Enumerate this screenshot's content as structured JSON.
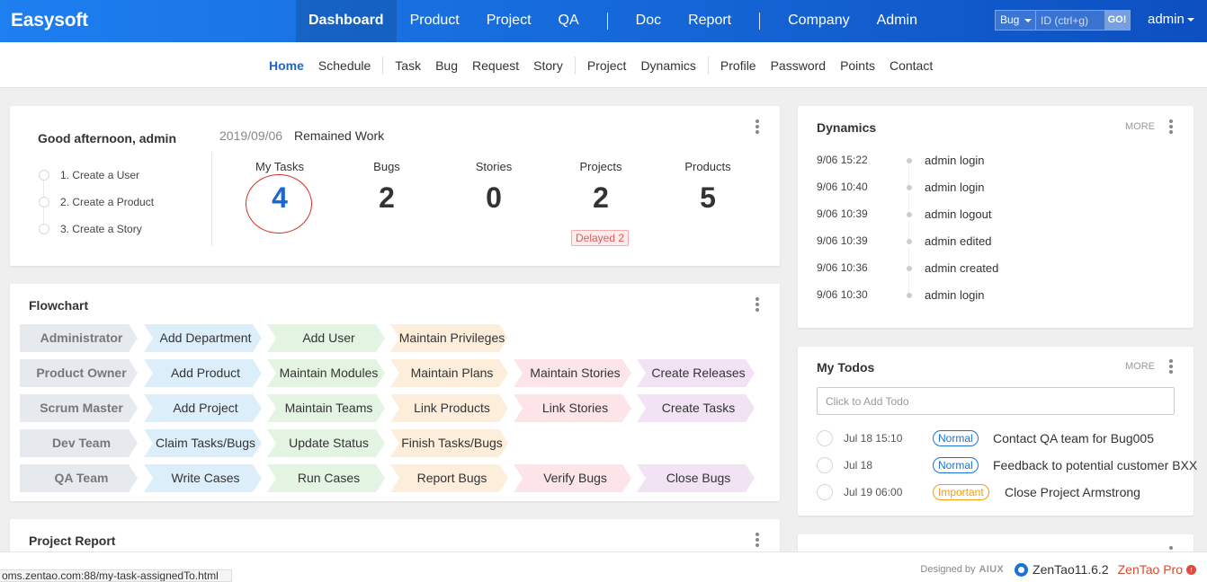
{
  "app": {
    "brand": "Easysoft"
  },
  "nav": {
    "items": [
      {
        "label": "Dashboard",
        "active": true
      },
      {
        "label": "Product"
      },
      {
        "label": "Project"
      },
      {
        "label": "QA"
      },
      {
        "label": "Doc"
      },
      {
        "label": "Report"
      },
      {
        "label": "Company"
      },
      {
        "label": "Admin"
      }
    ]
  },
  "search": {
    "type": "Bug",
    "placeholder": "ID (ctrl+g)",
    "go": "GO!"
  },
  "user": {
    "name": "admin"
  },
  "subnav": {
    "items": [
      "Home",
      "Schedule",
      "Task",
      "Bug",
      "Request",
      "Story",
      "Project",
      "Dynamics",
      "Profile",
      "Password",
      "Points",
      "Contact"
    ],
    "active": "Home"
  },
  "welcome": {
    "greeting": "Good afternoon, admin",
    "steps": [
      "1. Create a User",
      "2. Create a Product",
      "3. Create a Story"
    ],
    "date": "2019/09/06",
    "remained": "Remained Work",
    "stats": [
      {
        "label": "My Tasks",
        "value": "4"
      },
      {
        "label": "Bugs",
        "value": "2"
      },
      {
        "label": "Stories",
        "value": "0"
      },
      {
        "label": "Projects",
        "value": "2"
      },
      {
        "label": "Products",
        "value": "5"
      }
    ],
    "delayed": "Delayed 2"
  },
  "flowchart": {
    "title": "Flowchart",
    "rows": [
      {
        "role": "Administrator",
        "steps": [
          "Add Department",
          "Add User",
          "Maintain Privileges"
        ]
      },
      {
        "role": "Product Owner",
        "steps": [
          "Add Product",
          "Maintain Modules",
          "Maintain Plans",
          "Maintain Stories",
          "Create Releases"
        ]
      },
      {
        "role": "Scrum Master",
        "steps": [
          "Add Project",
          "Maintain Teams",
          "Link Products",
          "Link Stories",
          "Create Tasks"
        ]
      },
      {
        "role": "Dev Team",
        "steps": [
          "Claim Tasks/Bugs",
          "Update Status",
          "Finish Tasks/Bugs"
        ]
      },
      {
        "role": "QA Team",
        "steps": [
          "Write Cases",
          "Run Cases",
          "Report Bugs",
          "Verify Bugs",
          "Close Bugs"
        ]
      }
    ],
    "colors": [
      "#e6e9ee",
      "#ddeefb",
      "#e3f4e3",
      "#fdeedb",
      "#fde4e9",
      "#f1e3f4"
    ]
  },
  "report": {
    "title": "Project Report"
  },
  "dynamics": {
    "title": "Dynamics",
    "more": "MORE",
    "items": [
      {
        "time": "9/06 15:22",
        "text": "admin login"
      },
      {
        "time": "9/06 10:40",
        "text": "admin login"
      },
      {
        "time": "9/06 10:39",
        "text": "admin logout"
      },
      {
        "time": "9/06 10:39",
        "text": "admin edited"
      },
      {
        "time": "9/06 10:36",
        "text": "admin created"
      },
      {
        "time": "9/06 10:30",
        "text": "admin login"
      }
    ]
  },
  "todos": {
    "title": "My Todos",
    "more": "MORE",
    "placeholder": "Click to Add Todo",
    "items": [
      {
        "date": "Jul 18 15:10",
        "priority": "Normal",
        "name": "Contact QA team for Bug005"
      },
      {
        "date": "Jul 18",
        "priority": "Normal",
        "name": "Feedback to potential customer BXX"
      },
      {
        "date": "Jul 19 06:00",
        "priority": "Important",
        "name": "Close Project Armstrong"
      }
    ]
  },
  "statusbar": {
    "url": "oms.zentao.com:88/my-task-assignedTo.html"
  },
  "footer": {
    "designed_by": "Designed by",
    "aiux": "AIUX",
    "version": "ZenTao11.6.2",
    "pro": "ZenTao Pro"
  }
}
